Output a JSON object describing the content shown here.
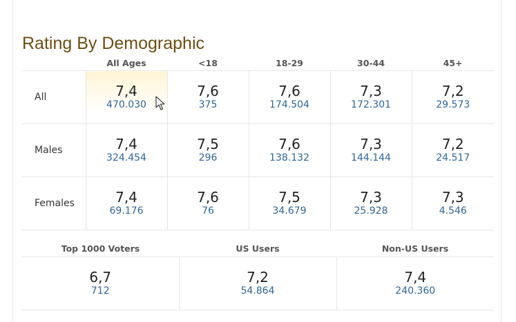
{
  "title": "Rating By Demographic",
  "demographics": {
    "columns": [
      "All Ages",
      "<18",
      "18-29",
      "30-44",
      "45+"
    ],
    "rows": [
      {
        "label": "All",
        "cells": [
          {
            "rating": "7,4",
            "votes": "470.030"
          },
          {
            "rating": "7,6",
            "votes": "375"
          },
          {
            "rating": "7,6",
            "votes": "174.504"
          },
          {
            "rating": "7,3",
            "votes": "172.301"
          },
          {
            "rating": "7,2",
            "votes": "29.573"
          }
        ]
      },
      {
        "label": "Males",
        "cells": [
          {
            "rating": "7,4",
            "votes": "324.454"
          },
          {
            "rating": "7,5",
            "votes": "296"
          },
          {
            "rating": "7,6",
            "votes": "138.132"
          },
          {
            "rating": "7,3",
            "votes": "144.144"
          },
          {
            "rating": "7,2",
            "votes": "24.517"
          }
        ]
      },
      {
        "label": "Females",
        "cells": [
          {
            "rating": "7,4",
            "votes": "69.176"
          },
          {
            "rating": "7,6",
            "votes": "76"
          },
          {
            "rating": "7,5",
            "votes": "34.679"
          },
          {
            "rating": "7,3",
            "votes": "25.928"
          },
          {
            "rating": "7,3",
            "votes": "4.546"
          }
        ]
      }
    ]
  },
  "other_groups": {
    "columns": [
      "Top 1000 Voters",
      "US Users",
      "Non-US Users"
    ],
    "cells": [
      {
        "rating": "6,7",
        "votes": "712"
      },
      {
        "rating": "7,2",
        "votes": "54.864"
      },
      {
        "rating": "7,4",
        "votes": "240.360"
      }
    ]
  },
  "colors": {
    "title": "#6b4f12",
    "votes": "#2e6599",
    "highlight": "#fff5d5"
  },
  "icons": {
    "cursor": "mouse-pointer-icon"
  }
}
